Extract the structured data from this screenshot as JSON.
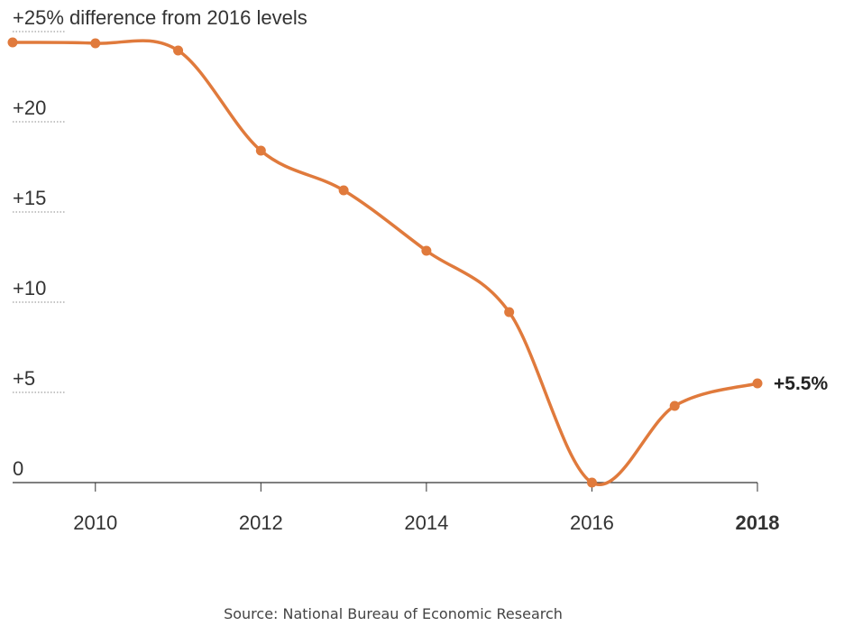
{
  "chart_data": {
    "type": "line",
    "title": "+25% difference from 2016 levels",
    "x": [
      2009,
      2010,
      2011,
      2012,
      2013,
      2014,
      2015,
      2016,
      2017,
      2018
    ],
    "series": [
      {
        "name": "Difference from 2016 levels (%)",
        "values": [
          24.4,
          24.35,
          23.95,
          18.4,
          16.2,
          12.85,
          9.45,
          0,
          4.25,
          5.5
        ],
        "color": "#e07a3c"
      }
    ],
    "yticks": [
      0,
      5,
      10,
      15,
      20,
      25
    ],
    "ytick_labels": [
      "0",
      "+5",
      "+10",
      "+15",
      "+20",
      "+25% difference from 2016 levels"
    ],
    "xticks": [
      2010,
      2012,
      2014,
      2016,
      2018
    ],
    "xtick_labels": [
      "2010",
      "2012",
      "2014",
      "2016",
      "2018"
    ],
    "ylim": [
      0,
      25
    ],
    "xlim": [
      2009,
      2018
    ],
    "end_label": "+5.5%",
    "source": "Source: National Bureau of Economic Research"
  }
}
